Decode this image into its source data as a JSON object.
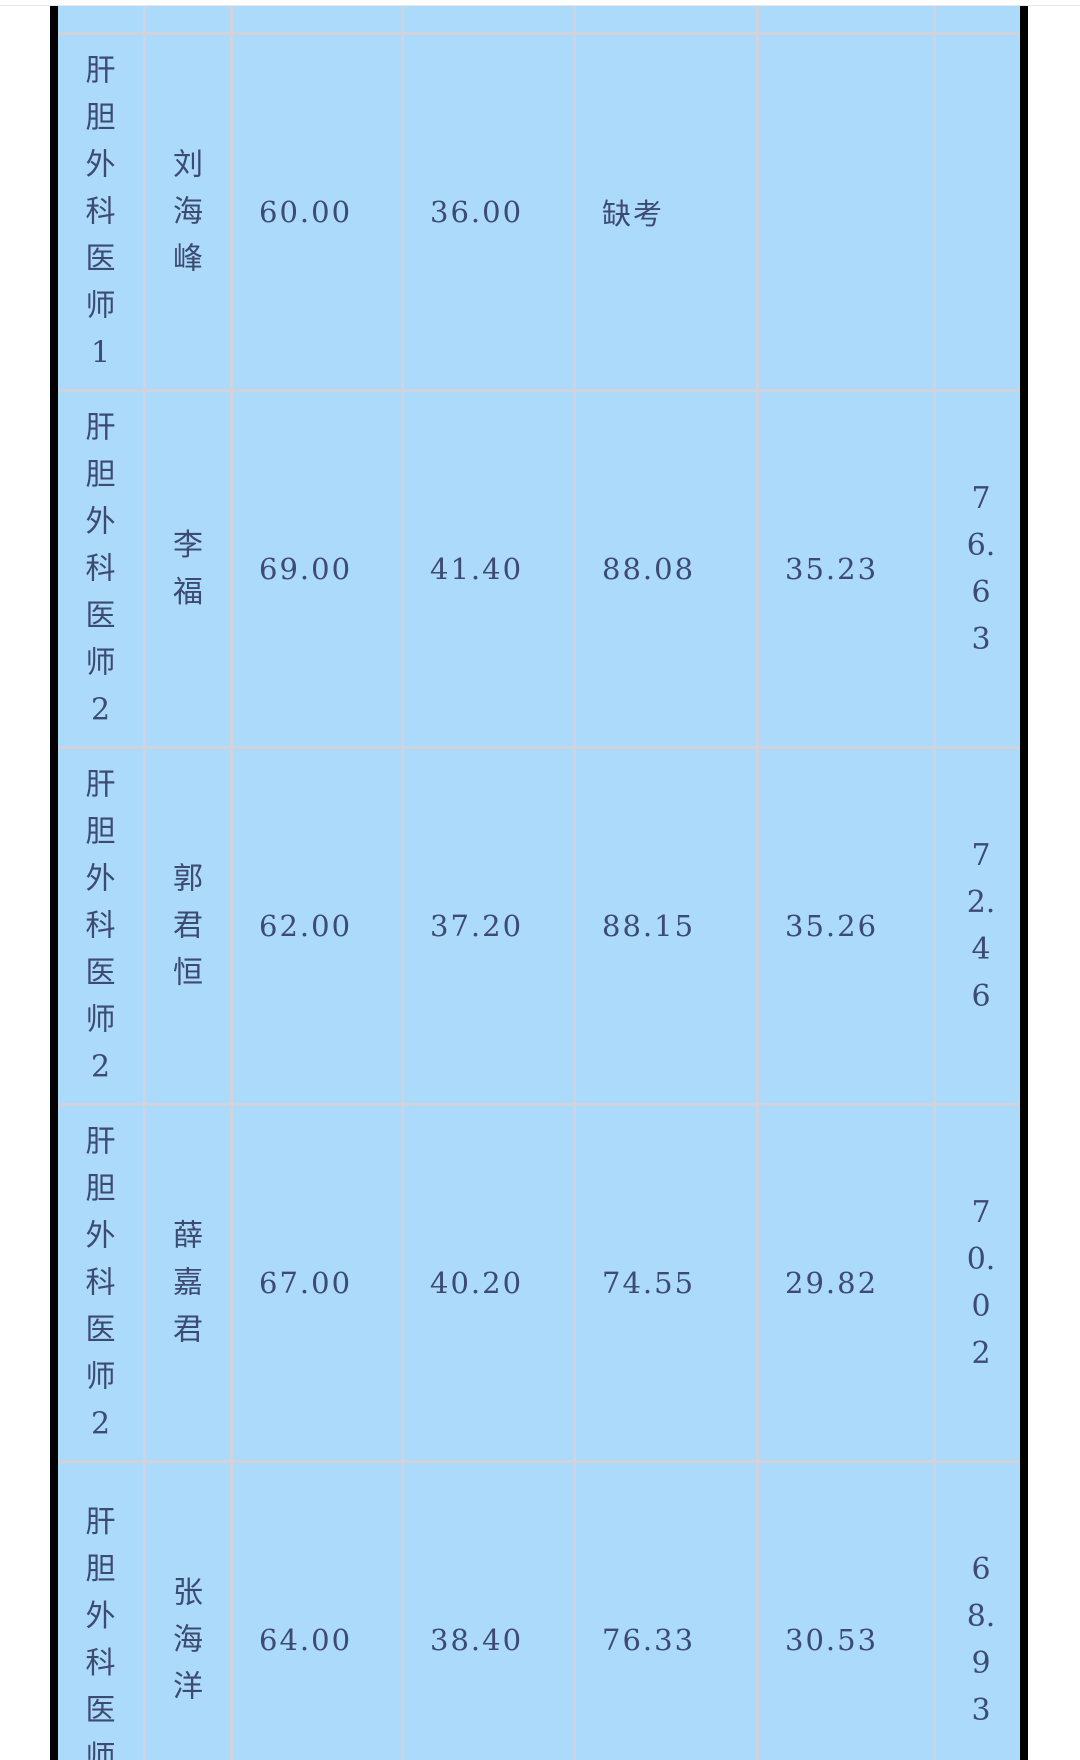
{
  "rows": [
    {
      "post": "肝胆外科医师1",
      "name": "刘海峰",
      "written": "60.00",
      "written_weighted": "36.00",
      "interview": "缺考",
      "interview_weighted": "",
      "total": ""
    },
    {
      "post": "肝胆外科医师2",
      "name": "李福",
      "written": "69.00",
      "written_weighted": "41.40",
      "interview": "88.08",
      "interview_weighted": "35.23",
      "total": "76.63"
    },
    {
      "post": "肝胆外科医师2",
      "name": "郭君恒",
      "written": "62.00",
      "written_weighted": "37.20",
      "interview": "88.15",
      "interview_weighted": "35.26",
      "total": "72.46"
    },
    {
      "post": "肝胆外科医师2",
      "name": "薛嘉君",
      "written": "67.00",
      "written_weighted": "40.20",
      "interview": "74.55",
      "interview_weighted": "29.82",
      "total": "70.02"
    },
    {
      "post": "肝胆外科医师",
      "name": "张海洋",
      "written": "64.00",
      "written_weighted": "38.40",
      "interview": "76.33",
      "interview_weighted": "30.53",
      "total": "68.93"
    }
  ],
  "colors": {
    "cell": "#acdafa",
    "grid": "#d0d3dc",
    "text": "#3d4a72",
    "frame": "#000000"
  }
}
